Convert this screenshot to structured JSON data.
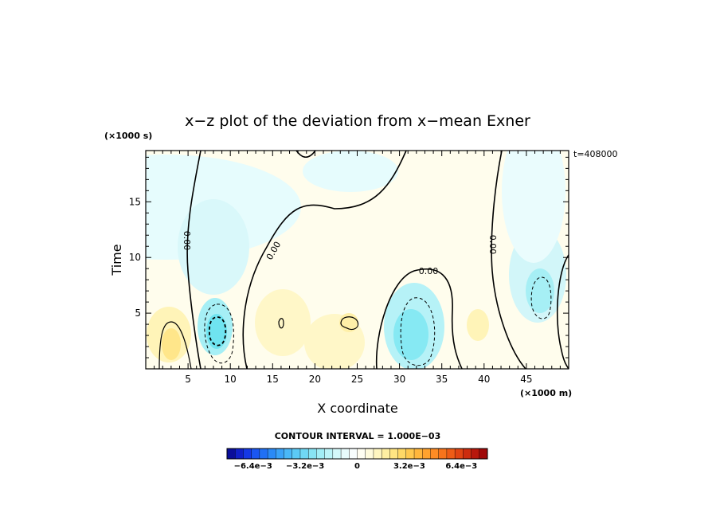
{
  "chart_data": {
    "type": "heatmap",
    "title": "x−z plot of the deviation from x−mean Exner",
    "xlabel": "X coordinate",
    "ylabel": "Time",
    "x_unit": "(×1000 m)",
    "y_unit": "(×1000 s)",
    "time_label": "t=408000",
    "xlim": [
      0,
      50
    ],
    "ylim": [
      0,
      19.6
    ],
    "x_ticks": [
      5,
      10,
      15,
      20,
      25,
      30,
      35,
      40,
      45
    ],
    "y_ticks": [
      5,
      10,
      15
    ],
    "contour_interval_label": "CONTOUR INTERVAL = 1.000E−03",
    "contour_zero_label": "0.00",
    "colorbar": {
      "range": [
        -0.008,
        0.008
      ],
      "tick_labels": [
        "−6.4e−3",
        "−3.2e−3",
        "0",
        "3.2e−3",
        "6.4e−3"
      ],
      "tick_values": [
        -0.0064,
        -0.0032,
        0,
        0.0032,
        0.0064
      ]
    },
    "features": [
      {
        "name": "negative cell",
        "x": 8.3,
        "y": 3.5,
        "min": -0.0035
      },
      {
        "name": "negative cell",
        "x": 31.5,
        "y": 3.5,
        "min": -0.0028
      },
      {
        "name": "negative cell",
        "x": 46.5,
        "y": 6.5,
        "min": -0.0022
      },
      {
        "name": "negative region",
        "x": 9.5,
        "y": 14.5,
        "min": -0.0012
      },
      {
        "name": "positive cell",
        "x": 2.8,
        "y": 2.5,
        "max": 0.0016
      },
      {
        "name": "positive region",
        "x": 18.5,
        "y": 4.5,
        "max": 0.0011
      },
      {
        "name": "positive region",
        "x": 24.0,
        "y": 3.5,
        "max": 0.0012
      },
      {
        "name": "positive region",
        "x": 39.0,
        "y": 4.0,
        "max": 0.001
      }
    ]
  }
}
